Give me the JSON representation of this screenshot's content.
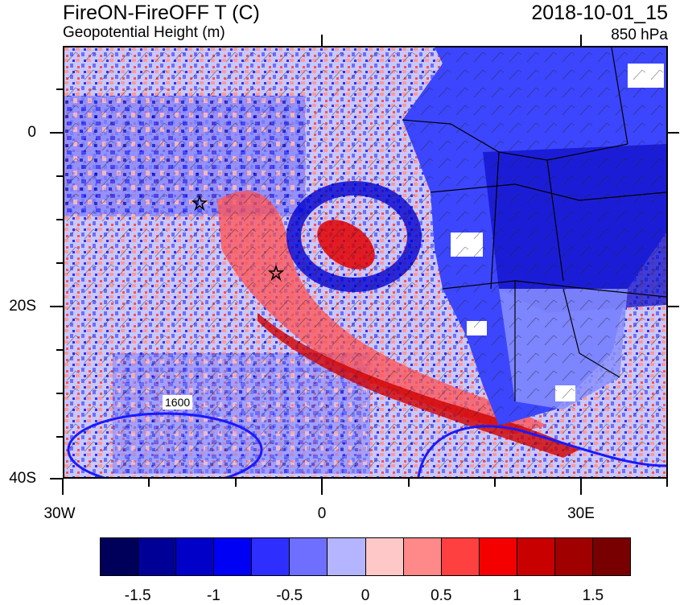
{
  "title": "FireON-FireOFF T (C)",
  "subtitle": "Geopotential Height (m)",
  "date": "2018-10-01_15",
  "level": "850 hPa",
  "lat_labels": [
    "0",
    "20S",
    "40S"
  ],
  "lon_labels": [
    "30W",
    "0",
    "30E"
  ],
  "contour_label": "1600",
  "colorbar": {
    "colors": [
      "#00005a",
      "#000096",
      "#0000c8",
      "#0000f5",
      "#2e2eff",
      "#6e6eff",
      "#b4b4ff",
      "#ffc8c8",
      "#ff8888",
      "#ff4040",
      "#f50000",
      "#c80000",
      "#a00000",
      "#780000"
    ],
    "labels": [
      "-1.5",
      "-1",
      "-0.5",
      "0",
      "0.5",
      "1",
      "1.5"
    ]
  },
  "map": {
    "land_color": "#3c46ff",
    "ocean_color": "#c8c8ff",
    "lat_range": [
      "10N",
      "40S"
    ],
    "lon_range": [
      "30W",
      "40E"
    ]
  }
}
